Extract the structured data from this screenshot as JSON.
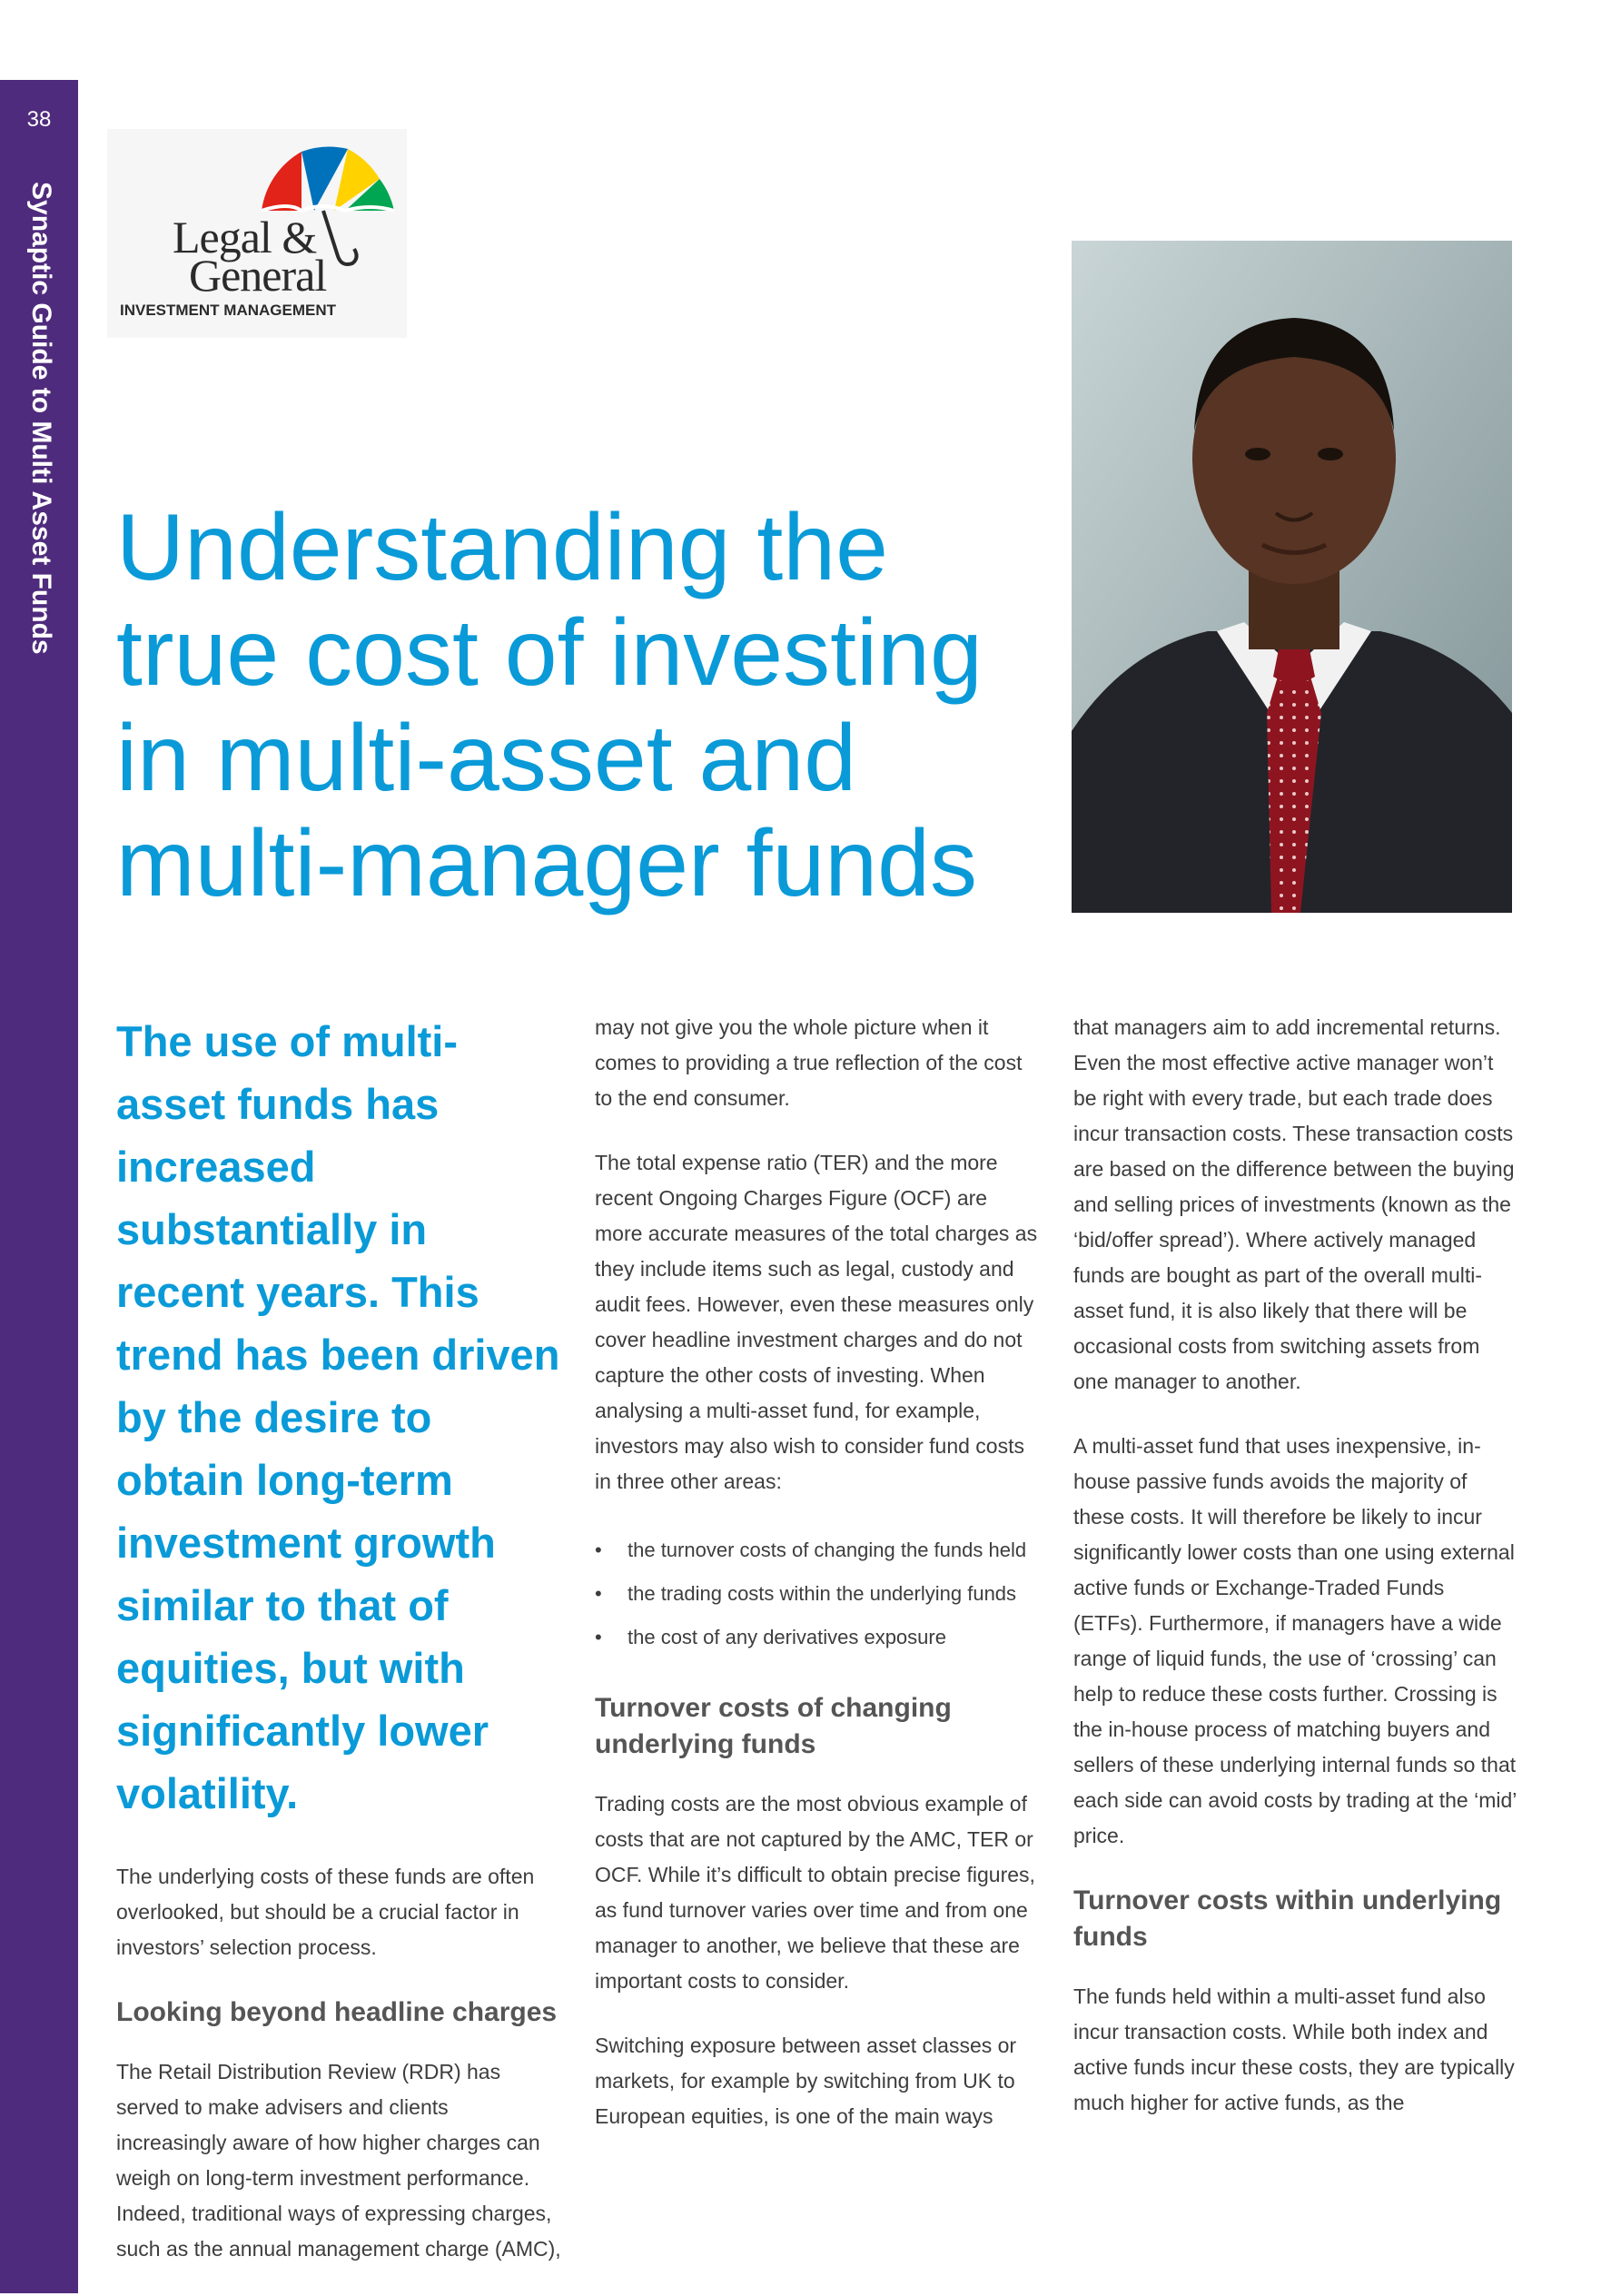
{
  "sidebar": {
    "page_number": "38",
    "title": "Synaptic Guide to Multi Asset Funds"
  },
  "logo": {
    "line1": "Legal &",
    "line2": "General",
    "subtitle": "INVESTMENT MANAGEMENT",
    "umbrella_colors": [
      "#e2231a",
      "#0072bc",
      "#ffd200",
      "#00a651"
    ]
  },
  "article": {
    "title": "Understanding the true cost of investing in multi-asset and multi-manager funds",
    "intro": "The use of multi-asset funds has increased substantially in recent years. This trend has been driven by the desire to obtain long-term investment growth similar to that of equities, but with significantly lower volatility.",
    "col1_p1": "The underlying costs of these funds are often overlooked, but should be a crucial factor in investors’ selection process.",
    "heading1": "Looking beyond headline charges",
    "col1_p2": "The Retail Distribution Review (RDR) has served to make advisers and clients increasingly aware of how higher charges can weigh on long-term investment performance. Indeed, traditional ways of expressing charges, such as the annual management charge (AMC),",
    "col2_p1": "may not give you the whole picture when it comes to providing a true reflection of the cost to the end consumer.",
    "col2_p2": "The total expense ratio (TER) and the more recent Ongoing Charges Figure (OCF) are more accurate measures of the total charges as they include items such as legal, custody and audit fees. However, even these measures only cover headline investment charges and do not capture the other costs of investing. When analysing a multi-asset fund, for example, investors may also wish to consider fund costs in three other areas:",
    "bullets": [
      "the turnover costs of changing the funds held",
      "the trading costs within the underlying funds",
      "the cost of any derivatives exposure"
    ],
    "heading2": "Turnover costs of changing underlying funds",
    "col2_p3": "Trading costs are the most obvious example of costs that are not captured by the AMC, TER or OCF. While it’s difficult to obtain precise figures, as fund turnover varies over time and from one manager to another, we believe that these are important costs to consider.",
    "col2_p4": "Switching exposure between asset classes or markets, for example by switching from UK to European equities, is one of the main ways",
    "col3_p1": "that managers aim to add incremental returns. Even the most effective active manager won’t be right with every trade, but each trade does incur transaction costs. These transaction costs are based on the difference between the buying and selling prices of investments (known as the ‘bid/offer spread’). Where actively managed funds are bought as part of the overall multi-asset fund, it is also likely that there will be occasional costs from switching assets from one manager to another.",
    "col3_p2": "A multi-asset fund that uses inexpensive, in-house passive funds avoids the majority of these costs. It will therefore be likely to incur significantly lower costs than one using external active funds or Exchange-Traded Funds (ETFs). Furthermore, if managers have a wide range of liquid funds, the use of ‘crossing’ can help to reduce these costs further. Crossing is the in-house process of matching buyers and sellers of these underlying internal funds so that each side can avoid costs by trading at the ‘mid’ price.",
    "heading3": "Turnover costs within underlying funds",
    "col3_p3": "The funds held within a multi-asset fund also incur transaction costs. While both index and active funds incur these costs, they are typically much higher for active funds, as the"
  },
  "photo": {
    "icon": "portrait-photo"
  },
  "colors": {
    "accent": "#0a9ad8",
    "sidebar": "#4f2b7d"
  }
}
